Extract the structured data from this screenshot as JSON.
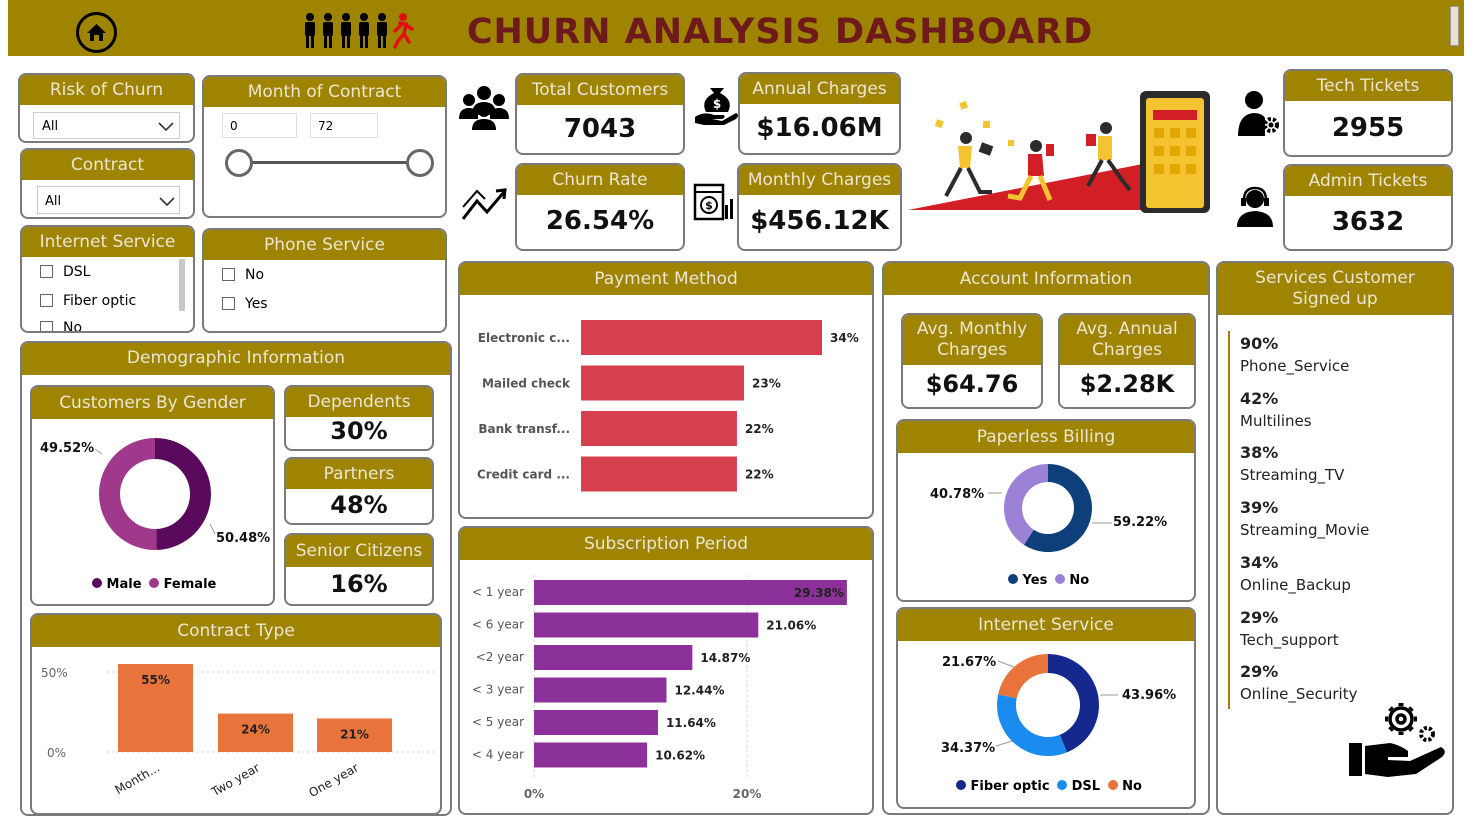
{
  "title": "CHURN ANALYSIS DASHBOARD",
  "colors": {
    "gold": "#9e8400",
    "title": "#6e1a1a",
    "red": "#d6404e",
    "purple": "#8c3199",
    "orange": "#e8743b",
    "navy": "#14288e",
    "blue": "#1a8cf0",
    "dark_purple": "#5a0a5c",
    "magenta": "#a0388c",
    "light_purple": "#9b82d6",
    "dark_blue": "#0e3f7a"
  },
  "icons": {
    "home": "home-icon",
    "people": "people-churn-icon"
  },
  "filters": {
    "risk": {
      "title": "Risk of Churn",
      "value": "All"
    },
    "month": {
      "title": "Month of Contract",
      "min": "0",
      "max": "72"
    },
    "contract": {
      "title": "Contract",
      "value": "All"
    },
    "internet": {
      "title": "Internet Service",
      "options": [
        "DSL",
        "Fiber optic",
        "No"
      ]
    },
    "phone": {
      "title": "Phone Service",
      "options": [
        "No",
        "Yes"
      ]
    }
  },
  "kpis": {
    "total_customers": {
      "label": "Total Customers",
      "value": "7043"
    },
    "annual_charges": {
      "label": "Annual Charges",
      "value": "$16.06M"
    },
    "churn_rate": {
      "label": "Churn Rate",
      "value": "26.54%"
    },
    "monthly_charges": {
      "label": "Monthly Charges",
      "value": "$456.12K"
    },
    "tech_tickets": {
      "label": "Tech Tickets",
      "value": "2955"
    },
    "admin_tickets": {
      "label": "Admin Tickets",
      "value": "3632"
    }
  },
  "demographic": {
    "title": "Demographic Information",
    "gender": {
      "title": "Customers By Gender",
      "legend": [
        "Male",
        "Female"
      ],
      "pct_left": "49.52%",
      "pct_right": "50.48%"
    },
    "dependents": {
      "label": "Dependents",
      "value": "30%"
    },
    "partners": {
      "label": "Partners",
      "value": "48%"
    },
    "seniors": {
      "label": "Senior Citizens",
      "value": "16%"
    }
  },
  "contract_type": {
    "title": "Contract Type",
    "y_ticks": [
      "50%",
      "0%"
    ]
  },
  "payment": {
    "title": "Payment Method"
  },
  "subscription": {
    "title": "Subscription Period",
    "x_ticks": [
      "0%",
      "20%"
    ]
  },
  "account": {
    "title": "Account Information",
    "avg_monthly": {
      "label": "Avg. Monthly Charges",
      "value": "$64.76"
    },
    "avg_annual": {
      "label": "Avg. Annual Charges",
      "value": "$2.28K"
    },
    "paperless": {
      "title": "Paperless Billing",
      "legend": [
        "Yes",
        "No"
      ],
      "pct_left": "40.78%",
      "pct_right": "59.22%"
    },
    "internet": {
      "title": "Internet Service",
      "legend": [
        "Fiber optic",
        "DSL",
        "No"
      ],
      "pct_top": "21.67%",
      "pct_right": "43.96%",
      "pct_bottom": "34.37%"
    }
  },
  "services": {
    "title": "Services Customer Signed up",
    "items": [
      {
        "pct": "90%",
        "name": "Phone_Service"
      },
      {
        "pct": "42%",
        "name": "Multilines"
      },
      {
        "pct": "38%",
        "name": "Streaming_TV"
      },
      {
        "pct": "39%",
        "name": "Streaming_Movie"
      },
      {
        "pct": "34%",
        "name": "Online_Backup"
      },
      {
        "pct": "29%",
        "name": "Tech_support"
      },
      {
        "pct": "29%",
        "name": "Online_Security"
      }
    ]
  },
  "chart_data": [
    {
      "type": "pie",
      "title": "Customers By Gender",
      "labels": [
        "Male",
        "Female"
      ],
      "values": [
        49.52,
        50.48
      ]
    },
    {
      "type": "bar",
      "title": "Contract Type",
      "categories": [
        "Month...",
        "Two year",
        "One year"
      ],
      "values": [
        55,
        24,
        21
      ],
      "ylim": [
        0,
        60
      ]
    },
    {
      "type": "bar",
      "title": "Payment Method",
      "categories": [
        "Electronic c...",
        "Mailed check",
        "Bank transf...",
        "Credit card ..."
      ],
      "values": [
        34,
        23,
        22,
        22
      ],
      "value_labels": [
        "34%",
        "23%",
        "22%",
        "22%"
      ]
    },
    {
      "type": "bar",
      "title": "Subscription Period",
      "categories": [
        "< 1 year",
        "< 6 year",
        "<2 year",
        "< 3 year",
        "< 5 year",
        "< 4 year"
      ],
      "values": [
        29.38,
        21.06,
        14.87,
        12.44,
        11.64,
        10.62
      ],
      "value_labels": [
        "29.38%",
        "21.06%",
        "14.87%",
        "12.44%",
        "11.64%",
        "10.62%"
      ],
      "xlim": [
        0,
        30
      ]
    },
    {
      "type": "pie",
      "title": "Paperless Billing",
      "labels": [
        "Yes",
        "No"
      ],
      "values": [
        40.78,
        59.22
      ]
    },
    {
      "type": "pie",
      "title": "Internet Service",
      "labels": [
        "Fiber optic",
        "DSL",
        "No"
      ],
      "values": [
        43.96,
        34.37,
        21.67
      ]
    }
  ]
}
